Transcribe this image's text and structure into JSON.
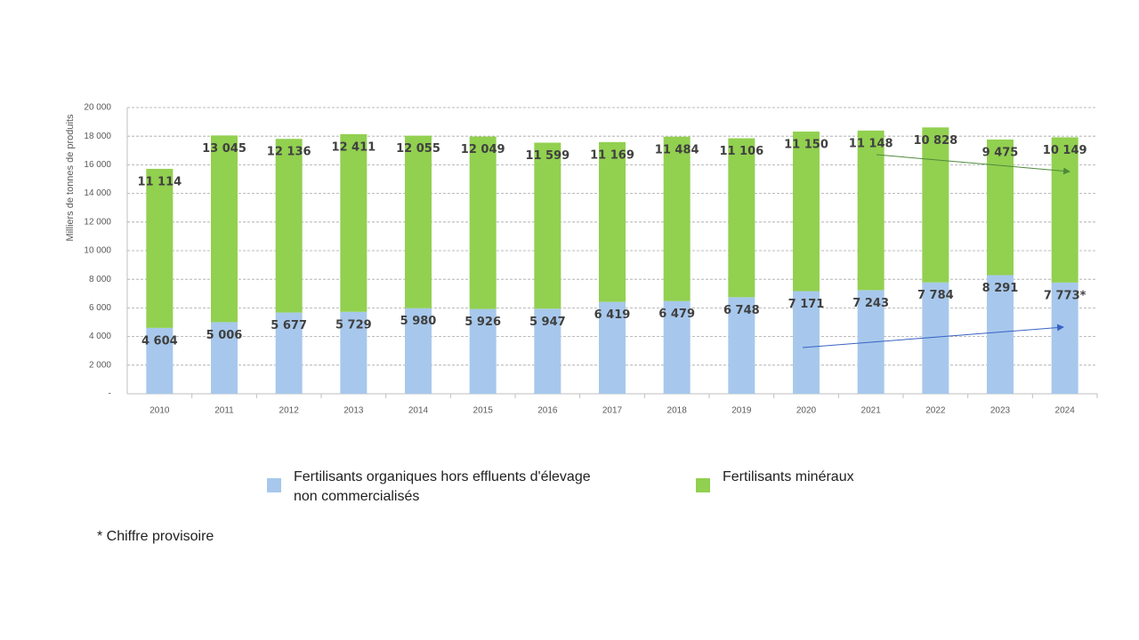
{
  "chart_data": {
    "type": "stacked_bar",
    "y_label": "Milliers de tonnes de produits",
    "categories": [
      "2010",
      "2011",
      "2012",
      "2013",
      "2014",
      "2015",
      "2016",
      "2017",
      "2018",
      "2019",
      "2020",
      "2021",
      "2022",
      "2023",
      "2024"
    ],
    "series": [
      {
        "name": "Fertilisants organiques hors effluents d'élevage non commercialisés",
        "color": "#a7c8ec",
        "values": [
          4604,
          5006,
          5677,
          5729,
          5980,
          5926,
          5947,
          6419,
          6479,
          6748,
          7171,
          7243,
          7784,
          8291,
          7773
        ],
        "value_labels": [
          "4 604",
          "5 006",
          "5 677",
          "5 729",
          "5 980",
          "5 926",
          "5 947",
          "6 419",
          "6 479",
          "6 748",
          "7 171",
          "7 243",
          "7 784",
          "8 291",
          "7 773*"
        ]
      },
      {
        "name": "Fertilisants minéraux",
        "color": "#92d050",
        "values": [
          11114,
          13045,
          12136,
          12411,
          12055,
          12049,
          11599,
          11169,
          11484,
          11106,
          11150,
          11148,
          10828,
          9475,
          10149
        ],
        "value_labels": [
          "11 114",
          "13 045",
          "12 136",
          "12 411",
          "12 055",
          "12 049",
          "11 599",
          "11 169",
          "11 484",
          "11 106",
          "11 150",
          "11 148",
          "10 828",
          "9 475",
          "10 149"
        ]
      }
    ],
    "ylim": [
      0,
      20000
    ],
    "yticks": [
      {
        "value": 0,
        "label": "-"
      },
      {
        "value": 2000,
        "label": "2 000"
      },
      {
        "value": 4000,
        "label": "4 000"
      },
      {
        "value": 6000,
        "label": "6 000"
      },
      {
        "value": 8000,
        "label": "8 000"
      },
      {
        "value": 10000,
        "label": "10 000"
      },
      {
        "value": 12000,
        "label": "12 000"
      },
      {
        "value": 14000,
        "label": "14 000"
      },
      {
        "value": 16000,
        "label": "16 000"
      },
      {
        "value": 18000,
        "label": "18 000"
      },
      {
        "value": 20000,
        "label": "20 000"
      }
    ],
    "grid": true,
    "footnote": "* Chiffre provisoire"
  }
}
